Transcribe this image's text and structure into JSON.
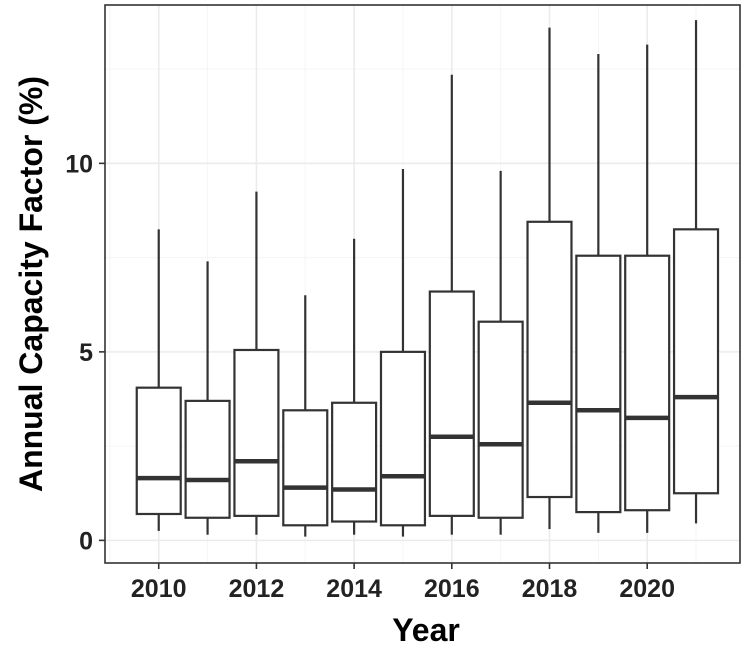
{
  "chart_data": {
    "type": "boxplot",
    "xlabel": "Year",
    "ylabel": "Annual Capacity Factor (%)",
    "ylim": [
      -0.6,
      14.2
    ],
    "xlim": [
      2008.9,
      2021.9
    ],
    "x_ticks": [
      2010,
      2012,
      2014,
      2016,
      2018,
      2020
    ],
    "y_ticks": [
      0,
      5,
      10
    ],
    "grid": true,
    "categories": [
      2010,
      2011,
      2012,
      2013,
      2014,
      2015,
      2016,
      2017,
      2018,
      2019,
      2020,
      2021
    ],
    "boxes": [
      {
        "x": 2010,
        "whisker_low": 0.25,
        "q1": 0.7,
        "median": 1.65,
        "q3": 4.05,
        "whisker_high": 8.25
      },
      {
        "x": 2011,
        "whisker_low": 0.15,
        "q1": 0.6,
        "median": 1.6,
        "q3": 3.7,
        "whisker_high": 7.4
      },
      {
        "x": 2012,
        "whisker_low": 0.15,
        "q1": 0.65,
        "median": 2.1,
        "q3": 5.05,
        "whisker_high": 9.25
      },
      {
        "x": 2013,
        "whisker_low": 0.1,
        "q1": 0.4,
        "median": 1.4,
        "q3": 3.45,
        "whisker_high": 6.5
      },
      {
        "x": 2014,
        "whisker_low": 0.15,
        "q1": 0.5,
        "median": 1.35,
        "q3": 3.65,
        "whisker_high": 8.0
      },
      {
        "x": 2015,
        "whisker_low": 0.1,
        "q1": 0.4,
        "median": 1.7,
        "q3": 5.0,
        "whisker_high": 9.85
      },
      {
        "x": 2016,
        "whisker_low": 0.15,
        "q1": 0.65,
        "median": 2.75,
        "q3": 6.6,
        "whisker_high": 12.35
      },
      {
        "x": 2017,
        "whisker_low": 0.15,
        "q1": 0.6,
        "median": 2.55,
        "q3": 5.8,
        "whisker_high": 9.8
      },
      {
        "x": 2018,
        "whisker_low": 0.3,
        "q1": 1.15,
        "median": 3.65,
        "q3": 8.45,
        "whisker_high": 13.6
      },
      {
        "x": 2019,
        "whisker_low": 0.2,
        "q1": 0.75,
        "median": 3.45,
        "q3": 7.55,
        "whisker_high": 12.9
      },
      {
        "x": 2020,
        "whisker_low": 0.2,
        "q1": 0.8,
        "median": 3.25,
        "q3": 7.55,
        "whisker_high": 13.15
      },
      {
        "x": 2021,
        "whisker_low": 0.45,
        "q1": 1.25,
        "median": 3.8,
        "q3": 8.25,
        "whisker_high": 13.8
      }
    ],
    "colors": {
      "box_stroke": "#333333",
      "box_fill": "#ffffff",
      "grid_major": "#ebebeb",
      "grid_minor": "#f5f5f5",
      "panel_border": "#333333"
    }
  }
}
